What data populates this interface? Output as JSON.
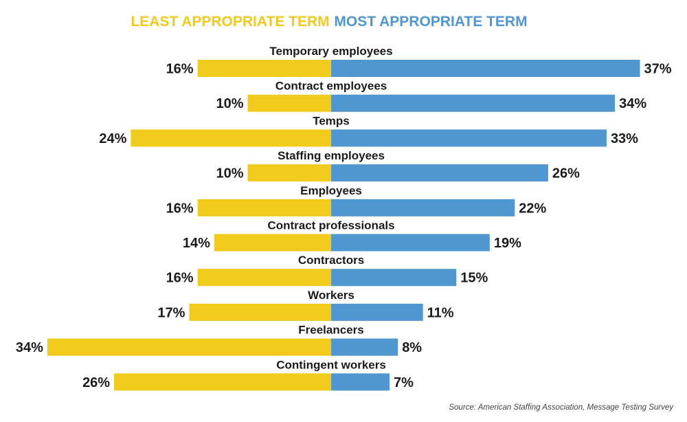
{
  "chart_data": {
    "type": "bar",
    "orientation": "diverging-horizontal",
    "categories": [
      "Temporary employees",
      "Contract employees",
      "Temps",
      "Staffing employees",
      "Employees",
      "Contract professionals",
      "Contractors",
      "Workers",
      "Freelancers",
      "Contingent workers"
    ],
    "series": [
      {
        "name": "LEAST APPROPRIATE TERM",
        "color": "#f2ca1b",
        "direction": "left",
        "values": [
          16,
          10,
          24,
          10,
          16,
          14,
          16,
          17,
          34,
          26
        ],
        "labels": [
          "16%",
          "10%",
          "24%",
          "10%",
          "16%",
          "14%",
          "16%",
          "17%",
          "34%",
          "26%"
        ]
      },
      {
        "name": "MOST APPROPRIATE TERM",
        "color": "#5096d0",
        "direction": "right",
        "values": [
          37,
          34,
          33,
          26,
          22,
          19,
          15,
          11,
          8,
          7
        ],
        "labels": [
          "37%",
          "34%",
          "33%",
          "26%",
          "22%",
          "19%",
          "15%",
          "11%",
          "8%",
          "7%"
        ]
      }
    ],
    "value_unit": "%",
    "legend_position": "top",
    "grid": false,
    "source": "Source: American Staffing Association, Message Testing Survey"
  }
}
